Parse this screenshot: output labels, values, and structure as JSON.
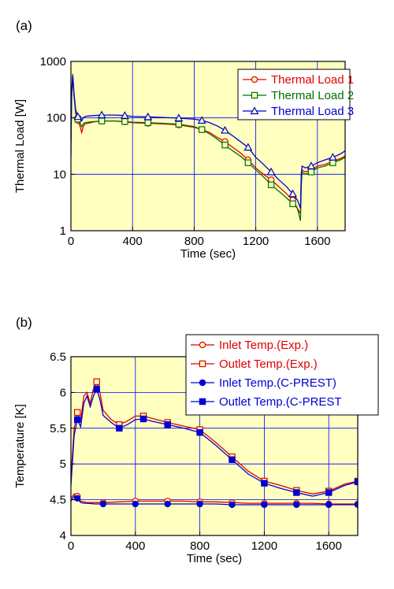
{
  "chart_data": [
    {
      "panel": "(a)",
      "type": "line",
      "xlabel": "Time (sec)",
      "ylabel": "Thermal Load  [W]",
      "yscale": "log",
      "xlim": [
        0,
        1780
      ],
      "ylim": [
        1,
        1000
      ],
      "xticks": [
        0,
        400,
        800,
        1200,
        1600
      ],
      "yticks": [
        1,
        10,
        100,
        1000
      ],
      "grid": true,
      "legend": "top-right",
      "background_color": "#ffffc0",
      "series": [
        {
          "name": "Thermal Load 1",
          "color": "#e00000",
          "marker": "circle-open",
          "x": [
            0,
            5,
            12,
            20,
            30,
            45,
            60,
            70,
            80,
            90,
            110,
            150,
            200,
            280,
            350,
            400,
            500,
            600,
            700,
            800,
            850,
            900,
            950,
            1000,
            1050,
            1100,
            1150,
            1200,
            1250,
            1300,
            1350,
            1400,
            1440,
            1470,
            1490,
            1495,
            1500,
            1520,
            1560,
            1600,
            1650,
            1700,
            1750,
            1780
          ],
          "y": [
            60,
            250,
            500,
            250,
            120,
            90,
            70,
            55,
            70,
            78,
            80,
            85,
            88,
            88,
            85,
            82,
            80,
            78,
            75,
            68,
            62,
            55,
            45,
            38,
            30,
            24,
            18,
            13,
            10,
            8,
            6,
            4.5,
            3.5,
            2.5,
            2,
            8,
            12,
            11,
            12,
            14,
            15,
            17,
            19,
            21
          ]
        },
        {
          "name": "Thermal Load 2",
          "color": "#007000",
          "marker": "square-open",
          "x": [
            0,
            5,
            12,
            20,
            30,
            45,
            60,
            70,
            80,
            90,
            110,
            150,
            200,
            280,
            350,
            400,
            500,
            600,
            700,
            800,
            850,
            900,
            950,
            1000,
            1050,
            1100,
            1150,
            1200,
            1250,
            1300,
            1350,
            1400,
            1440,
            1470,
            1490,
            1495,
            1500,
            1520,
            1560,
            1600,
            1650,
            1700,
            1750,
            1780
          ],
          "y": [
            20,
            300,
            600,
            260,
            130,
            95,
            80,
            70,
            78,
            82,
            84,
            86,
            88,
            88,
            86,
            84,
            82,
            80,
            77,
            70,
            62,
            52,
            42,
            33,
            26,
            21,
            16,
            12,
            9,
            6.5,
            5,
            3.8,
            3,
            2.5,
            1.5,
            6,
            11,
            10,
            11,
            13,
            14,
            16,
            18,
            20
          ]
        },
        {
          "name": "Thermal Load 3",
          "color": "#0000d0",
          "marker": "triangle-open",
          "x": [
            0,
            5,
            12,
            20,
            30,
            45,
            60,
            70,
            80,
            90,
            110,
            150,
            200,
            280,
            350,
            400,
            500,
            600,
            700,
            800,
            850,
            900,
            950,
            1000,
            1050,
            1100,
            1150,
            1200,
            1250,
            1300,
            1350,
            1400,
            1440,
            1470,
            1490,
            1495,
            1500,
            1520,
            1560,
            1600,
            1650,
            1700,
            1750,
            1780
          ],
          "y": [
            40,
            300,
            560,
            280,
            140,
            105,
            95,
            88,
            100,
            105,
            108,
            110,
            112,
            112,
            110,
            106,
            104,
            102,
            99,
            95,
            90,
            82,
            72,
            60,
            48,
            38,
            30,
            20,
            15,
            11,
            8,
            6,
            4.5,
            3.5,
            2.5,
            10,
            14,
            13,
            14,
            16,
            18,
            20,
            23,
            26
          ]
        }
      ]
    },
    {
      "panel": "(b)",
      "type": "line",
      "xlabel": "Time (sec)",
      "ylabel": "Temperature [K]",
      "xlim": [
        0,
        1780
      ],
      "ylim": [
        4,
        6.5
      ],
      "xticks": [
        0,
        400,
        800,
        1200,
        1600
      ],
      "yticks": [
        4,
        4.5,
        5,
        5.5,
        6,
        6.5
      ],
      "grid": true,
      "legend": "top-right",
      "background_color": "#ffffc0",
      "series": [
        {
          "name": "Inlet Temp.(Exp.)",
          "color": "#e00000",
          "marker": "circle-open",
          "x": [
            0,
            20,
            40,
            60,
            80,
            100,
            150,
            200,
            300,
            400,
            500,
            600,
            700,
            800,
            900,
            1000,
            1100,
            1200,
            1300,
            1400,
            1500,
            1600,
            1700,
            1780
          ],
          "y": [
            4.52,
            4.58,
            4.55,
            4.48,
            4.47,
            4.46,
            4.46,
            4.46,
            4.47,
            4.48,
            4.48,
            4.48,
            4.48,
            4.47,
            4.47,
            4.46,
            4.45,
            4.45,
            4.45,
            4.45,
            4.45,
            4.44,
            4.44,
            4.44
          ]
        },
        {
          "name": "Outlet Temp.(Exp.)",
          "color": "#e00000",
          "marker": "square-open",
          "x": [
            0,
            20,
            40,
            60,
            80,
            100,
            120,
            140,
            160,
            180,
            200,
            250,
            300,
            350,
            400,
            450,
            500,
            600,
            700,
            800,
            900,
            1000,
            1100,
            1200,
            1300,
            1400,
            1500,
            1600,
            1700,
            1780
          ],
          "y": [
            4.8,
            5.5,
            5.72,
            5.6,
            5.95,
            6.0,
            5.85,
            6.05,
            6.15,
            6.0,
            5.75,
            5.62,
            5.55,
            5.6,
            5.67,
            5.67,
            5.64,
            5.58,
            5.53,
            5.48,
            5.3,
            5.1,
            4.9,
            4.76,
            4.7,
            4.63,
            4.58,
            4.62,
            4.72,
            4.76
          ]
        },
        {
          "name": "Inlet Temp.(C-PREST)",
          "color": "#0000d0",
          "marker": "circle-filled",
          "x": [
            0,
            20,
            40,
            60,
            80,
            100,
            150,
            200,
            300,
            400,
            500,
            600,
            700,
            800,
            900,
            1000,
            1100,
            1200,
            1300,
            1400,
            1500,
            1600,
            1700,
            1780
          ],
          "y": [
            4.48,
            4.55,
            4.52,
            4.46,
            4.45,
            4.45,
            4.44,
            4.44,
            4.44,
            4.44,
            4.44,
            4.44,
            4.44,
            4.44,
            4.44,
            4.43,
            4.43,
            4.43,
            4.43,
            4.43,
            4.43,
            4.43,
            4.43,
            4.43
          ]
        },
        {
          "name": "Outlet Temp.(C-PREST",
          "color": "#0000d0",
          "marker": "square-filled",
          "x": [
            0,
            20,
            40,
            60,
            80,
            100,
            120,
            140,
            160,
            180,
            200,
            250,
            300,
            350,
            400,
            450,
            500,
            600,
            700,
            800,
            900,
            1000,
            1100,
            1200,
            1300,
            1400,
            1500,
            1600,
            1700,
            1780
          ],
          "y": [
            4.7,
            5.4,
            5.62,
            5.52,
            5.85,
            5.95,
            5.8,
            5.95,
            6.05,
            5.9,
            5.68,
            5.58,
            5.5,
            5.55,
            5.62,
            5.63,
            5.6,
            5.55,
            5.5,
            5.44,
            5.26,
            5.06,
            4.86,
            4.73,
            4.66,
            4.6,
            4.55,
            4.6,
            4.7,
            4.75
          ]
        }
      ]
    }
  ]
}
